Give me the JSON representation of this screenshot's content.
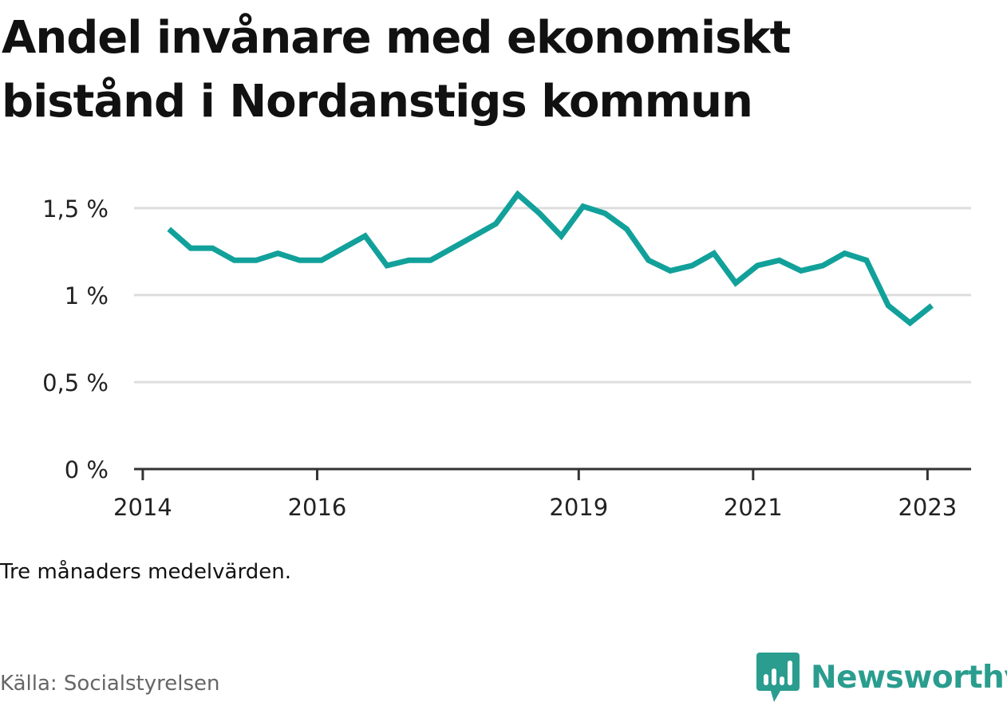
{
  "title": "Andel invånare med ekonomiskt bistånd i Nordanstigs kommun",
  "note": "Tre månaders medelvärden.",
  "source": "Källa: Socialstyrelsen",
  "brand": {
    "name": "Newsworthy",
    "icon": "newsworthy-logo-icon",
    "color": "#2a9d8f"
  },
  "colors": {
    "line": "#12a19a",
    "grid": "#dddddd",
    "axis": "#333333"
  },
  "chart_data": {
    "type": "line",
    "title": "Andel invånare med ekonomiskt bistånd i Nordanstigs kommun",
    "xlabel": "",
    "ylabel": "",
    "grid": true,
    "xlim": [
      2013.9,
      2023.5
    ],
    "ylim": [
      0,
      1.55
    ],
    "y_ticks": [
      {
        "value": 0,
        "label": "0 %"
      },
      {
        "value": 0.5,
        "label": "0,5 %"
      },
      {
        "value": 1,
        "label": "1 %"
      },
      {
        "value": 1.5,
        "label": "1,5 %"
      }
    ],
    "x_ticks": [
      {
        "value": 2014,
        "label": "2014"
      },
      {
        "value": 2016,
        "label": "2016"
      },
      {
        "value": 2019,
        "label": "2019"
      },
      {
        "value": 2021,
        "label": "2021"
      },
      {
        "value": 2023,
        "label": "2023"
      }
    ],
    "series": [
      {
        "x": [
          2014.3,
          2014.55,
          2014.8,
          2015.05,
          2015.3,
          2015.55,
          2015.8,
          2016.05,
          2016.3,
          2016.55,
          2016.8,
          2017.05,
          2017.3,
          2017.55,
          2017.8,
          2018.05,
          2018.3,
          2018.55,
          2018.8,
          2019.05,
          2019.3,
          2019.55,
          2019.8,
          2020.05,
          2020.3,
          2020.55,
          2020.8,
          2021.05,
          2021.3,
          2021.55,
          2021.8,
          2022.05,
          2022.3,
          2022.55,
          2022.8,
          2023.05
        ],
        "values": [
          1.38,
          1.27,
          1.27,
          1.2,
          1.2,
          1.24,
          1.2,
          1.2,
          1.27,
          1.34,
          1.17,
          1.2,
          1.2,
          1.27,
          1.34,
          1.41,
          1.58,
          1.47,
          1.34,
          1.51,
          1.47,
          1.38,
          1.2,
          1.14,
          1.17,
          1.24,
          1.07,
          1.17,
          1.2,
          1.14,
          1.17,
          1.24,
          1.2,
          0.94,
          0.84,
          0.94
        ]
      }
    ]
  }
}
